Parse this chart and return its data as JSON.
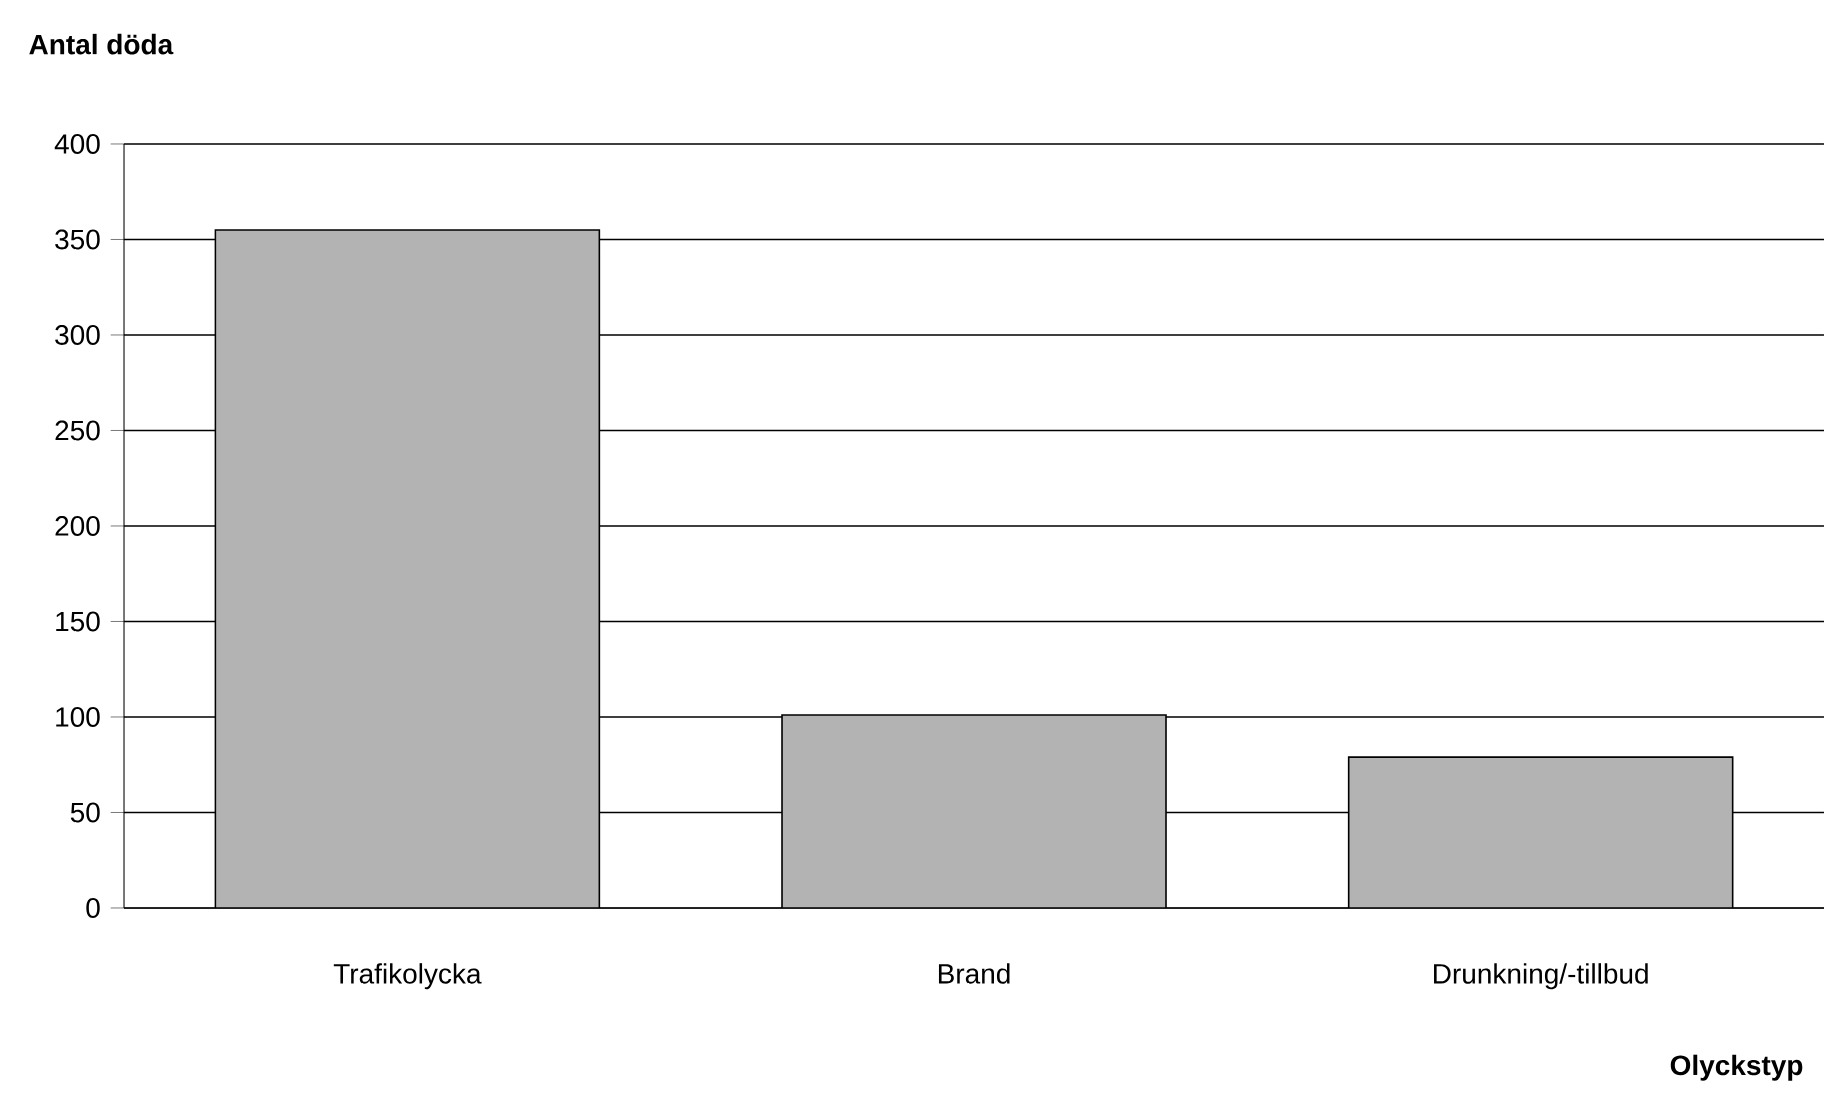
{
  "chart_data": {
    "type": "bar",
    "title": "Antal döda",
    "xlabel": "Olyckstyp",
    "categories": [
      "Trafikolycka",
      "Brand",
      "Drunkning/-tillbud"
    ],
    "values": [
      355,
      101,
      79
    ],
    "color": "#b3b3b3",
    "ylim": [
      0,
      400
    ],
    "yticks": [
      0,
      50,
      100,
      150,
      200,
      250,
      300,
      350,
      400
    ],
    "grid": "y"
  }
}
